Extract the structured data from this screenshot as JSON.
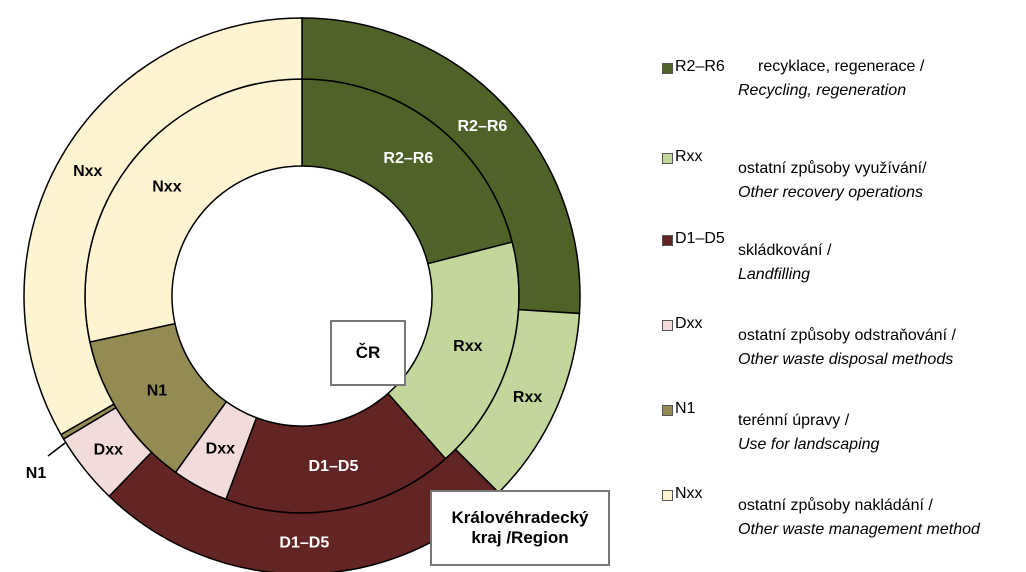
{
  "chart_data": {
    "type": "donut",
    "categories": [
      "R2–R6",
      "Rxx",
      "D1–D5",
      "Dxx",
      "N1",
      "Nxx"
    ],
    "colors": [
      "#4f6228",
      "#c3d69b",
      "#632523",
      "#f2dcdb",
      "#948a54",
      "#fef4d2"
    ],
    "descriptions": [
      {
        "cs": "recyklace, regenerace /",
        "en": "Recycling, regeneration"
      },
      {
        "cs": "ostatní způsoby využívání/",
        "en": "Other recovery operations"
      },
      {
        "cs": "skládkování /",
        "en": "Landfilling"
      },
      {
        "cs": "ostatní způsoby odstraňování /",
        "en": "Other waste disposal methods"
      },
      {
        "cs": "terénní úpravy /",
        "en": "Use for landscaping"
      },
      {
        "cs": "ostatní způsoby nakládání /",
        "en": "Other waste management method"
      }
    ],
    "series": [
      {
        "name": "ČR",
        "values": [
          21,
          17.5,
          17.2,
          4.2,
          11.7,
          28.4
        ]
      },
      {
        "name": "Královéhradecký kraj /Region",
        "values": [
          26,
          11.5,
          24.7,
          4.2,
          0.3,
          33.3
        ]
      }
    ]
  }
}
